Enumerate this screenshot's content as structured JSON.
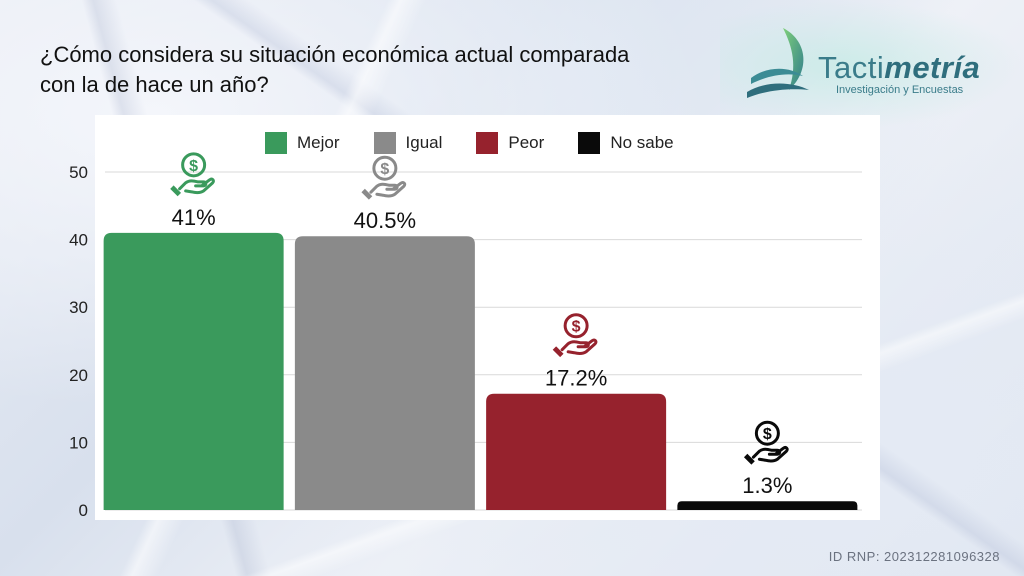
{
  "title": {
    "line1": "¿Cómo considera su situación económica actual comparada",
    "line2": "con la de hace un año?"
  },
  "logo": {
    "name_plain": "Tacti",
    "name_italic": "metría",
    "subtitle": "Investigación y Encuestas"
  },
  "footer": {
    "rnp": "ID RNP: 202312281096328"
  },
  "icon": "hand-holding-dollar-icon",
  "chart_data": {
    "type": "bar",
    "categories": [
      "Mejor",
      "Igual",
      "Peor",
      "No sabe"
    ],
    "values": [
      41,
      40.5,
      17.2,
      1.3
    ],
    "value_labels": [
      "41%",
      "40.5%",
      "17.2%",
      "1.3%"
    ],
    "colors": [
      "#3a9a5c",
      "#8a8a8a",
      "#96222d",
      "#0a0a0a"
    ],
    "ylim": [
      0,
      50
    ],
    "yticks": [
      0,
      10,
      20,
      30,
      40,
      50
    ],
    "grid": true,
    "legend": "top-center"
  }
}
